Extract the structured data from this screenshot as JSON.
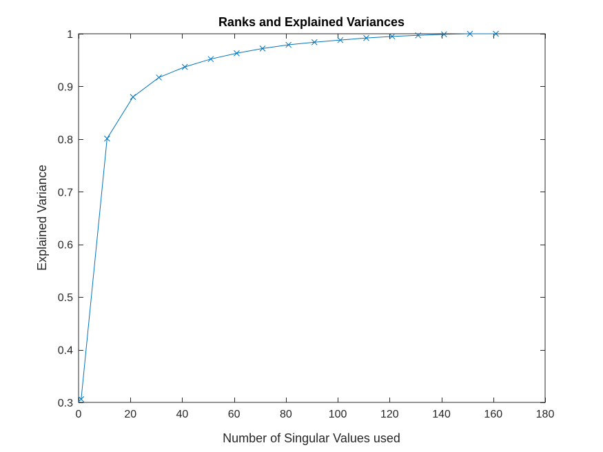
{
  "chart_data": {
    "type": "line",
    "title": "Ranks and Explained Variances",
    "xlabel": "Number of Singular Values used",
    "ylabel": "Explained Variance",
    "xlim": [
      0,
      180
    ],
    "ylim": [
      0.3,
      1
    ],
    "xticks": [
      0,
      20,
      40,
      60,
      80,
      100,
      120,
      140,
      160,
      180
    ],
    "xtick_labels": [
      "0",
      "20",
      "40",
      "60",
      "80",
      "100",
      "120",
      "140",
      "160",
      "180"
    ],
    "yticks": [
      0.3,
      0.4,
      0.5,
      0.6,
      0.7,
      0.8,
      0.9,
      1
    ],
    "ytick_labels": [
      "0.3",
      "0.4",
      "0.5",
      "0.6",
      "0.7",
      "0.8",
      "0.9",
      "1"
    ],
    "grid": false,
    "legend": "none",
    "series": [
      {
        "color": "#0072bd",
        "marker": "x",
        "x": [
          1,
          11,
          21,
          31,
          41,
          51,
          61,
          71,
          81,
          91,
          101,
          111,
          121,
          131,
          141,
          151,
          161
        ],
        "y": [
          0.306,
          0.801,
          0.88,
          0.917,
          0.937,
          0.952,
          0.963,
          0.972,
          0.979,
          0.984,
          0.988,
          0.992,
          0.995,
          0.997,
          0.999,
          1.0,
          1.0
        ]
      }
    ]
  }
}
